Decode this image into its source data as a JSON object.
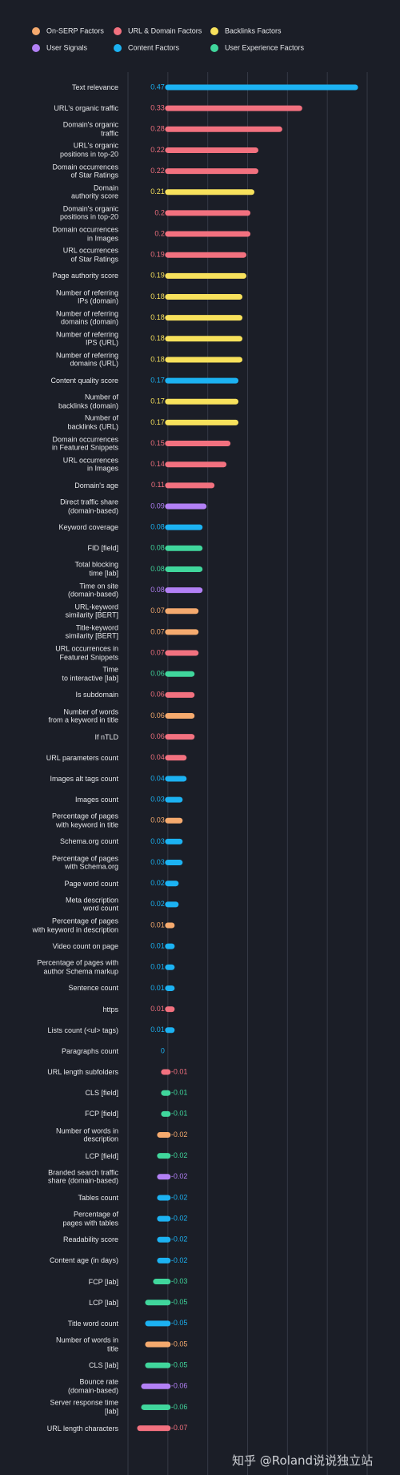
{
  "chart_data": {
    "type": "bar",
    "orientation": "horizontal",
    "grid": true,
    "xlim": [
      -0.1,
      0.5
    ],
    "xticks": [
      -0.1,
      0,
      0.1,
      0.2,
      0.3,
      0.4,
      0.5
    ],
    "categories": [
      "Text relevance",
      "URL's organic traffic",
      "Domain's organic\ntraffic",
      "URL's organic\npositions in top-20",
      "Domain occurrences\nof Star Ratings",
      "Domain\nauthority score",
      "Domain's organic\npositions in top-20",
      "Domain occurrences\nin Images",
      "URL occurrences\nof Star Ratings",
      "Page authority score",
      "Number of referring\nIPs (domain)",
      "Number of referring\ndomains (domain)",
      "Number of referring\nIPS (URL)",
      "Number of referring\ndomains (URL)",
      "Content quality score",
      "Number of\nbacklinks (domain)",
      "Number of\nbacklinks (URL)",
      "Domain occurrences\nin Featured Snippets",
      "URL occurrences\nin Images",
      "Domain's age",
      "Direct traffic share\n(domain-based)",
      "Keyword coverage",
      "FID [field]",
      "Total blocking\ntime [lab]",
      "Time on site\n(domain-based)",
      "URL-keyword\nsimilarity [BERT]",
      "Title-keyword\nsimilarity [BERT]",
      "URL occurrences in\nFeatured Snippets",
      "Time\nto interactive [lab]",
      "Is subdomain",
      "Number of words\nfrom a keyword in title",
      "If nTLD",
      "URL parameters count",
      "Images alt tags count",
      "Images count",
      "Percentage of pages\nwith keyword in title",
      "Schema.org count",
      "Percentage of pages\nwith Schema.org",
      "Page word count",
      "Meta description\nword count",
      "Percentage of pages\nwith keyword in description",
      "Video count on page",
      "Percentage of pages with\nauthor Schema markup",
      "Sentence count",
      "https",
      "Lists count (<ul> tags)",
      "Paragraphs count",
      "URL length subfolders",
      "CLS [field]",
      "FCP [field]",
      "Number of words in\ndescription",
      "LCP [field]",
      "Branded search traffic\nshare (domain-based)",
      "Tables count",
      "Percentage of\npages with tables",
      "Readability score",
      "Content age (in days)",
      "FCP [lab]",
      "LCP [lab]",
      "Title word count",
      "Number of words in\ntitle",
      "CLS [lab]",
      "Bounce rate\n(domain-based)",
      "Server response time\n[lab]",
      "URL length characters"
    ],
    "series": [
      {
        "name": "On-SERP Factors",
        "color": "#f5aa6e",
        "values": [
          null,
          null,
          null,
          null,
          null,
          null,
          null,
          null,
          null,
          null,
          null,
          null,
          null,
          null,
          null,
          null,
          null,
          null,
          null,
          null,
          null,
          null,
          null,
          null,
          null,
          0.07,
          0.07,
          null,
          null,
          null,
          0.06,
          null,
          null,
          null,
          null,
          0.03,
          null,
          null,
          null,
          null,
          0.01,
          null,
          null,
          null,
          null,
          null,
          null,
          null,
          null,
          null,
          -0.02,
          null,
          null,
          null,
          null,
          null,
          null,
          null,
          null,
          null,
          -0.05,
          null,
          null,
          null,
          null
        ]
      },
      {
        "name": "URL & Domain Factors",
        "color": "#f2717f",
        "values": [
          null,
          0.33,
          0.28,
          0.22,
          0.22,
          null,
          0.2,
          0.2,
          0.19,
          null,
          null,
          null,
          null,
          null,
          null,
          null,
          null,
          0.15,
          0.14,
          0.11,
          null,
          null,
          null,
          null,
          null,
          null,
          null,
          0.07,
          null,
          0.06,
          null,
          0.06,
          0.04,
          null,
          null,
          null,
          null,
          null,
          null,
          null,
          null,
          null,
          null,
          null,
          0.01,
          null,
          null,
          -0.01,
          null,
          null,
          null,
          null,
          null,
          null,
          null,
          null,
          null,
          null,
          null,
          null,
          null,
          null,
          null,
          null,
          -0.07
        ]
      },
      {
        "name": "Backlinks Factors",
        "color": "#f7e15c",
        "values": [
          null,
          null,
          null,
          null,
          null,
          0.21,
          null,
          null,
          null,
          0.19,
          0.18,
          0.18,
          0.18,
          0.18,
          null,
          0.17,
          0.17,
          null,
          null,
          null,
          null,
          null,
          null,
          null,
          null,
          null,
          null,
          null,
          null,
          null,
          null,
          null,
          null,
          null,
          null,
          null,
          null,
          null,
          null,
          null,
          null,
          null,
          null,
          null,
          null,
          null,
          null,
          null,
          null,
          null,
          null,
          null,
          null,
          null,
          null,
          null,
          null,
          null,
          null,
          null,
          null,
          null,
          null,
          null,
          null
        ]
      },
      {
        "name": "User Signals",
        "color": "#b280f5",
        "values": [
          null,
          null,
          null,
          null,
          null,
          null,
          null,
          null,
          null,
          null,
          null,
          null,
          null,
          null,
          null,
          null,
          null,
          null,
          null,
          null,
          0.09,
          null,
          null,
          null,
          0.08,
          null,
          null,
          null,
          null,
          null,
          null,
          null,
          null,
          null,
          null,
          null,
          null,
          null,
          null,
          null,
          null,
          null,
          null,
          null,
          null,
          null,
          null,
          null,
          null,
          null,
          null,
          null,
          -0.02,
          null,
          null,
          null,
          null,
          null,
          null,
          null,
          null,
          null,
          -0.06,
          null,
          null
        ]
      },
      {
        "name": "Content Factors",
        "color": "#1cb2f2",
        "values": [
          0.47,
          null,
          null,
          null,
          null,
          null,
          null,
          null,
          null,
          null,
          null,
          null,
          null,
          null,
          0.17,
          null,
          null,
          null,
          null,
          null,
          null,
          0.08,
          null,
          null,
          null,
          null,
          null,
          null,
          null,
          null,
          null,
          null,
          null,
          0.04,
          0.03,
          null,
          0.03,
          0.03,
          0.02,
          0.02,
          null,
          0.01,
          0.01,
          0.01,
          null,
          0.01,
          0,
          null,
          null,
          null,
          null,
          null,
          null,
          -0.02,
          -0.02,
          -0.02,
          -0.02,
          null,
          null,
          -0.05,
          null,
          null,
          null,
          null,
          null
        ]
      },
      {
        "name": "User Experience Factors",
        "color": "#40d69c",
        "values": [
          null,
          null,
          null,
          null,
          null,
          null,
          null,
          null,
          null,
          null,
          null,
          null,
          null,
          null,
          null,
          null,
          null,
          null,
          null,
          null,
          null,
          null,
          0.08,
          0.08,
          null,
          null,
          null,
          null,
          0.06,
          null,
          null,
          null,
          null,
          null,
          null,
          null,
          null,
          null,
          null,
          null,
          null,
          null,
          null,
          null,
          null,
          null,
          null,
          null,
          -0.01,
          -0.01,
          null,
          -0.02,
          null,
          null,
          null,
          null,
          null,
          -0.03,
          -0.05,
          null,
          null,
          -0.05,
          null,
          -0.06,
          null
        ]
      }
    ]
  },
  "watermark": "知乎 @Roland说说独立站"
}
